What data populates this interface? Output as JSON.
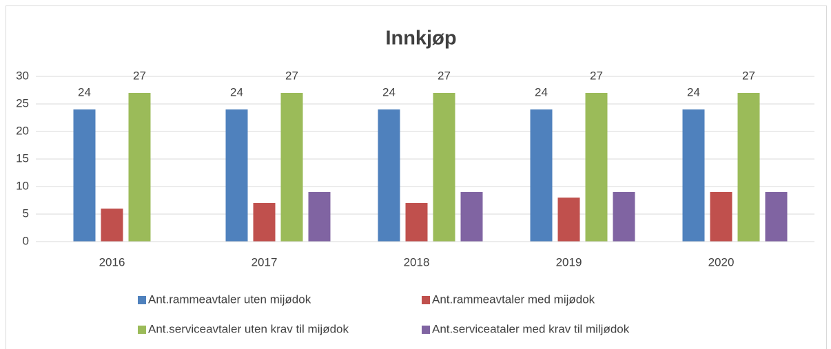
{
  "chart_data": {
    "type": "bar",
    "title": "Innkjøp",
    "categories": [
      "2016",
      "2017",
      "2018",
      "2019",
      "2020"
    ],
    "series": [
      {
        "name": "Ant.rammeavtaler uten mijødok",
        "color": "#4f81bd",
        "values": [
          24,
          24,
          24,
          24,
          24
        ],
        "data_labels": true
      },
      {
        "name": "Ant.rammeavtaler med mijødok",
        "color": "#c0504d",
        "values": [
          6,
          7,
          7,
          8,
          9
        ],
        "data_labels": false
      },
      {
        "name": "Ant.serviceavtaler uten krav til mijødok",
        "color": "#9bbb59",
        "values": [
          27,
          27,
          27,
          27,
          27
        ],
        "data_labels": true
      },
      {
        "name": "Ant.serviceataler med krav til miljødok",
        "color": "#8064a2",
        "values": [
          null,
          9,
          9,
          9,
          9
        ],
        "data_labels": false
      }
    ],
    "ylim": [
      0,
      30
    ],
    "yticks": [
      0,
      5,
      10,
      15,
      20,
      25,
      30
    ],
    "grid": true,
    "legend": "bottom"
  }
}
